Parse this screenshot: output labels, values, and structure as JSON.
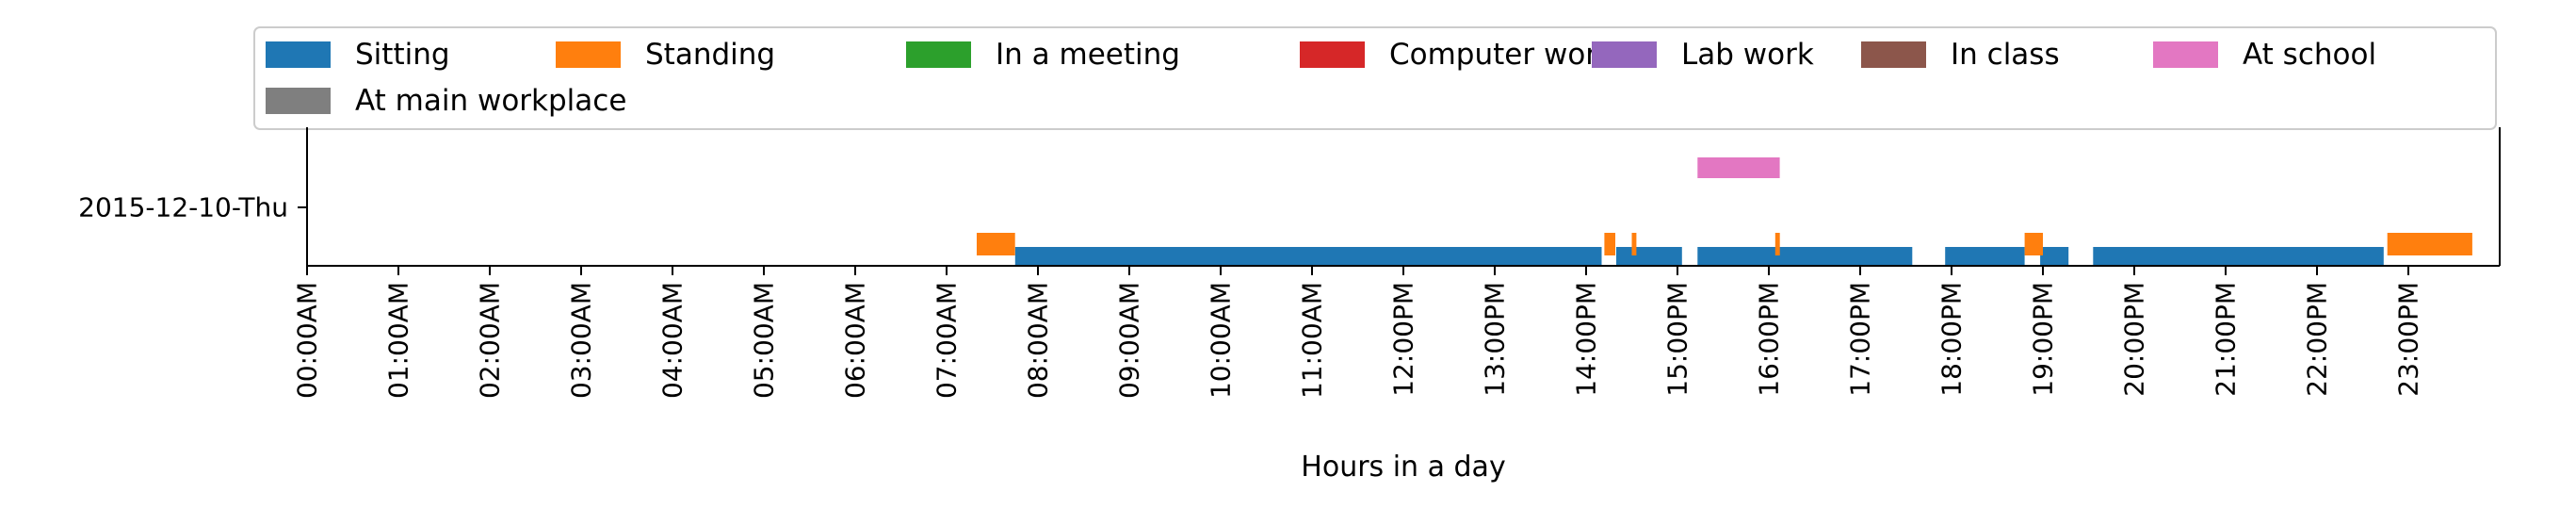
{
  "chart_data": {
    "type": "timeline",
    "xlabel": "Hours in a day",
    "ylabel": "",
    "xlim": [
      0,
      24
    ],
    "x_ticks": [
      "00:00AM",
      "01:00AM",
      "02:00AM",
      "03:00AM",
      "04:00AM",
      "05:00AM",
      "06:00AM",
      "07:00AM",
      "08:00AM",
      "09:00AM",
      "10:00AM",
      "11:00AM",
      "12:00PM",
      "13:00PM",
      "14:00PM",
      "15:00PM",
      "16:00PM",
      "17:00PM",
      "18:00PM",
      "19:00PM",
      "20:00PM",
      "21:00PM",
      "22:00PM",
      "23:00PM"
    ],
    "y_ticks": [
      "2015-12-10-Thu"
    ],
    "grid": false,
    "legend_position": "top",
    "series": [
      {
        "name": "Sitting",
        "color": "#1f77b4",
        "intervals": [
          [
            7.75,
            14.17
          ],
          [
            14.33,
            15.05
          ],
          [
            15.22,
            17.57
          ],
          [
            17.93,
            18.8
          ],
          [
            18.97,
            19.28
          ],
          [
            19.55,
            22.73
          ]
        ]
      },
      {
        "name": "Standing",
        "color": "#ff7f0e",
        "intervals": [
          [
            7.33,
            7.75
          ],
          [
            14.2,
            14.32
          ],
          [
            14.5,
            14.55
          ],
          [
            16.07,
            16.12
          ],
          [
            18.8,
            19.0
          ],
          [
            22.77,
            23.7
          ]
        ]
      },
      {
        "name": "In a meeting",
        "color": "#2ca02c",
        "intervals": []
      },
      {
        "name": "Computer work",
        "color": "#d62728",
        "intervals": []
      },
      {
        "name": "Lab work",
        "color": "#9467bd",
        "intervals": []
      },
      {
        "name": "In class",
        "color": "#8c564b",
        "intervals": []
      },
      {
        "name": "At school",
        "color": "#e377c2",
        "intervals": [
          [
            15.22,
            16.12
          ]
        ]
      },
      {
        "name": "At main workplace",
        "color": "#7f7f7f",
        "intervals": []
      }
    ]
  }
}
